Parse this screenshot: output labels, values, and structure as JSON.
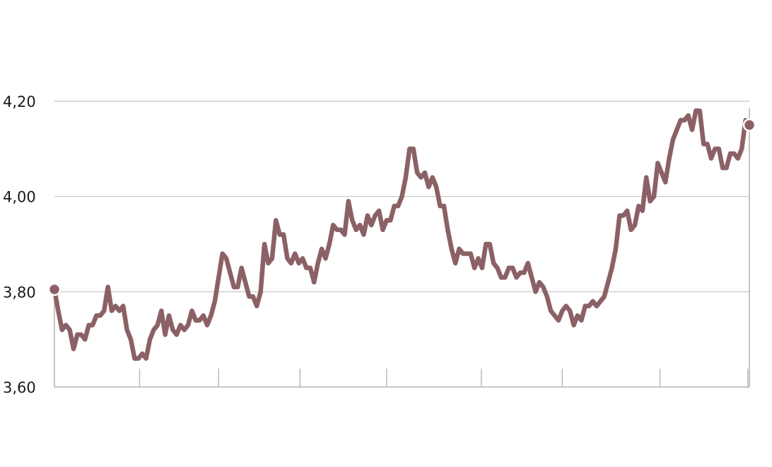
{
  "chart_data": {
    "type": "line",
    "title": "",
    "xlabel": "",
    "ylabel": "",
    "ylim": [
      3.6,
      4.2
    ],
    "yticks": [
      {
        "value": 3.6,
        "label": "3,60"
      },
      {
        "value": 3.8,
        "label": "3,80"
      },
      {
        "value": 4.0,
        "label": "4,00"
      },
      {
        "value": 4.2,
        "label": "4,20"
      }
    ],
    "grid": true,
    "line_color": "#8b6166",
    "marker_color": "#8b6166",
    "x_tick_positions": [
      22.3,
      43.0,
      64.3,
      87.0,
      111.8,
      133.0,
      158.6,
      181.6
    ],
    "series": [
      {
        "values": [
          3.805,
          3.76,
          3.72,
          3.73,
          3.72,
          3.68,
          3.71,
          3.71,
          3.7,
          3.73,
          3.73,
          3.75,
          3.75,
          3.76,
          3.81,
          3.76,
          3.77,
          3.76,
          3.77,
          3.72,
          3.7,
          3.66,
          3.66,
          3.67,
          3.66,
          3.7,
          3.72,
          3.73,
          3.76,
          3.71,
          3.75,
          3.72,
          3.71,
          3.73,
          3.72,
          3.73,
          3.76,
          3.74,
          3.74,
          3.75,
          3.73,
          3.75,
          3.78,
          3.83,
          3.88,
          3.87,
          3.84,
          3.81,
          3.81,
          3.85,
          3.82,
          3.79,
          3.79,
          3.77,
          3.8,
          3.9,
          3.86,
          3.87,
          3.95,
          3.92,
          3.92,
          3.87,
          3.86,
          3.88,
          3.86,
          3.87,
          3.85,
          3.85,
          3.82,
          3.86,
          3.89,
          3.87,
          3.9,
          3.94,
          3.93,
          3.93,
          3.92,
          3.99,
          3.95,
          3.93,
          3.94,
          3.92,
          3.96,
          3.94,
          3.96,
          3.97,
          3.93,
          3.95,
          3.95,
          3.98,
          3.98,
          4.0,
          4.04,
          4.1,
          4.1,
          4.05,
          4.04,
          4.05,
          4.02,
          4.04,
          4.02,
          3.98,
          3.98,
          3.93,
          3.89,
          3.86,
          3.89,
          3.88,
          3.88,
          3.88,
          3.85,
          3.87,
          3.85,
          3.9,
          3.9,
          3.86,
          3.85,
          3.83,
          3.83,
          3.85,
          3.85,
          3.83,
          3.84,
          3.84,
          3.86,
          3.83,
          3.8,
          3.82,
          3.81,
          3.79,
          3.76,
          3.75,
          3.74,
          3.76,
          3.77,
          3.76,
          3.73,
          3.75,
          3.74,
          3.77,
          3.77,
          3.78,
          3.77,
          3.78,
          3.79,
          3.82,
          3.85,
          3.89,
          3.96,
          3.96,
          3.97,
          3.93,
          3.94,
          3.98,
          3.97,
          4.04,
          3.99,
          4.0,
          4.07,
          4.05,
          4.03,
          4.08,
          4.12,
          4.14,
          4.16,
          4.16,
          4.17,
          4.14,
          4.18,
          4.18,
          4.11,
          4.11,
          4.08,
          4.1,
          4.1,
          4.06,
          4.06,
          4.09,
          4.09,
          4.08,
          4.1,
          4.16,
          4.15
        ]
      }
    ]
  }
}
